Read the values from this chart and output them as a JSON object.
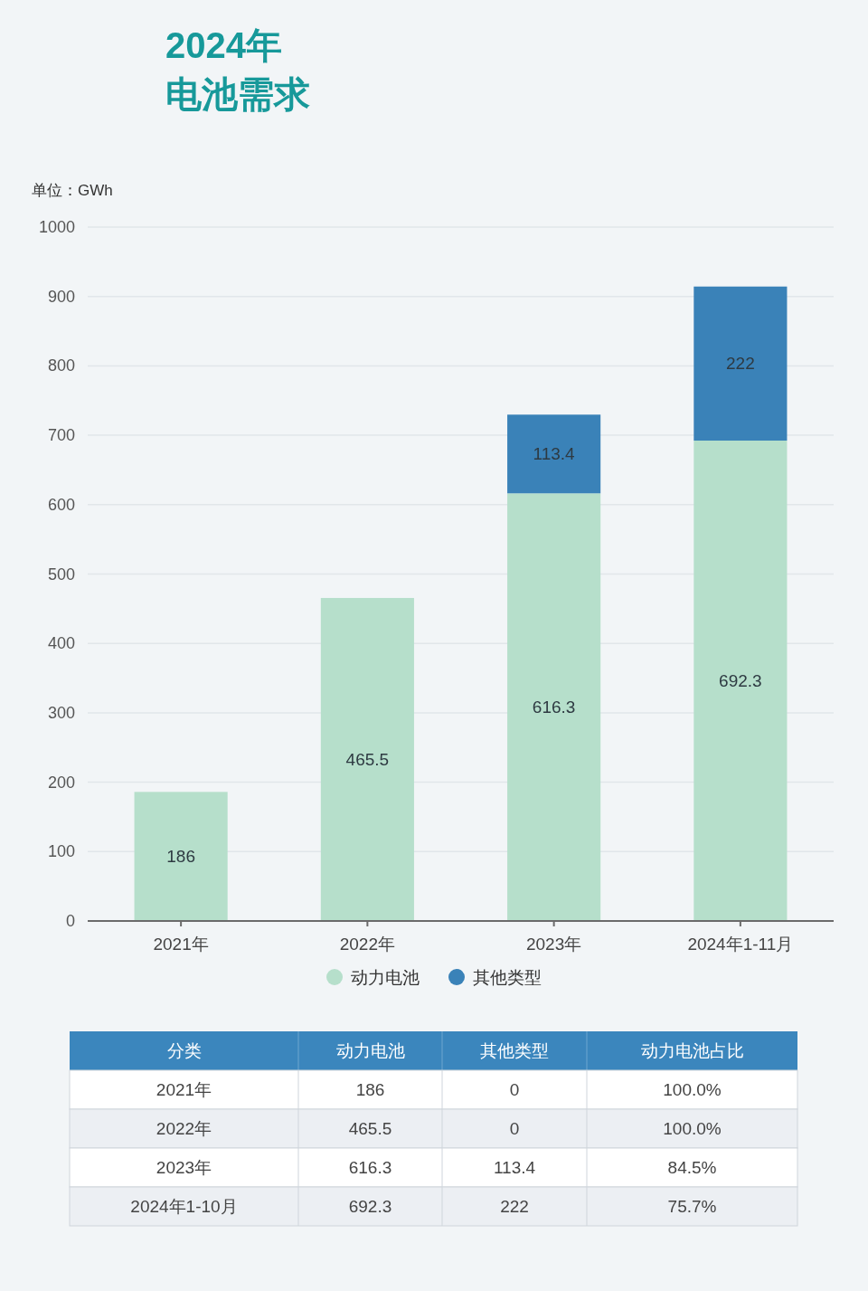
{
  "chart_data": [
    {
      "type": "bar",
      "title": "2024年",
      "subtitle": "电池需求",
      "ylabel": "单位：GWh",
      "categories": [
        "2021年",
        "2022年",
        "2023年",
        "2024年1-11月"
      ],
      "series": [
        {
          "name": "动力电池",
          "color": "#b6dfcb",
          "values": [
            186,
            465.5,
            616.3,
            692.3
          ],
          "value_labels": [
            "186",
            "465.5",
            "616.3",
            "692.3"
          ]
        },
        {
          "name": "其他类型",
          "color": "#3a82b8",
          "values": [
            0,
            0,
            113.4,
            222
          ],
          "value_labels": [
            null,
            null,
            "113.4",
            "222"
          ]
        }
      ],
      "stacked": true,
      "ylim": [
        0,
        1000
      ],
      "yticks": [
        0,
        100,
        200,
        300,
        400,
        500,
        600,
        700,
        800,
        900,
        1000
      ],
      "grid": "y",
      "legend": "bottom"
    },
    {
      "type": "other",
      "categories": [
        "分类",
        "动力电池",
        "其他类型",
        "动力电池占比"
      ],
      "y_categories": [
        "2021年",
        "2022年",
        "2023年",
        "2024年1-10月"
      ],
      "cell_labels": [
        [
          "186",
          "0",
          "100.0%"
        ],
        [
          "465.5",
          "0",
          "100.0%"
        ],
        [
          "616.3",
          "113.4",
          "84.5%"
        ],
        [
          "692.3",
          "222",
          "75.7%"
        ]
      ]
    }
  ]
}
